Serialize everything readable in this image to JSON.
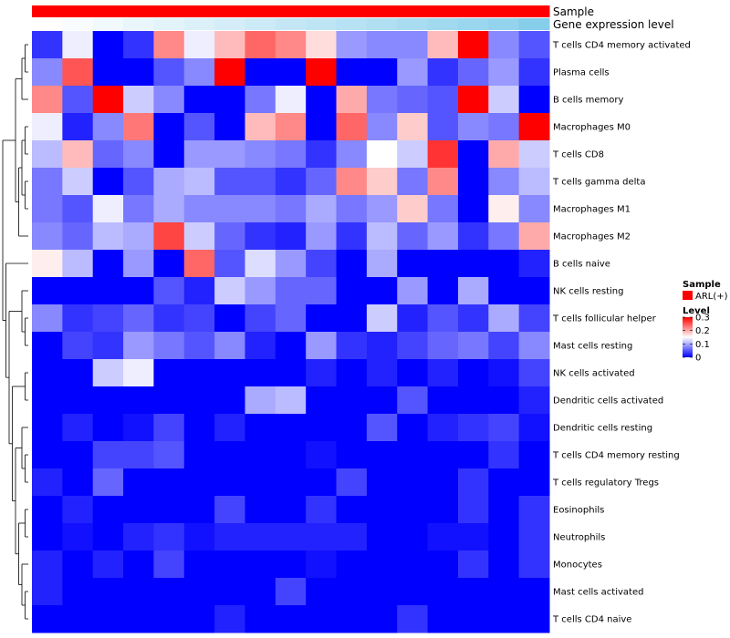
{
  "chart_data": {
    "type": "heatmap",
    "title": "",
    "color_scale": {
      "min": 0,
      "max": 0.3,
      "low": "#0000ff",
      "mid": "#ffffff",
      "high": "#ff0000"
    },
    "annotations": [
      {
        "label": "Sample",
        "color": "#ff0000"
      },
      {
        "label": "Gene expression level",
        "gradient": [
          "#ffffff",
          "#87ceeb"
        ]
      }
    ],
    "rows": [
      "T cells CD4 memory activated",
      "Plasma cells",
      "B cells memory",
      "Macrophages M0",
      "T cells CD8",
      "T cells gamma delta",
      "Macrophages M1",
      "Macrophages M2",
      "B cells naive",
      "NK cells resting",
      "T cells follicular helper",
      "Mast cells resting",
      "NK cells activated",
      "Dendritic cells activated",
      "Dendritic cells resting",
      "T cells CD4 memory resting",
      "T cells regulatory  Tregs",
      "Eosinophils",
      "Neutrophils",
      "Monocytes",
      "Mast cells activated",
      "T cells CD4 naive"
    ],
    "values": [
      [
        0.03,
        0.14,
        0.0,
        0.03,
        0.22,
        0.14,
        0.19,
        0.24,
        0.22,
        0.17,
        0.09,
        0.08,
        0.08,
        0.19,
        0.3,
        0.08,
        0.05
      ],
      [
        0.08,
        0.25,
        0.0,
        0.0,
        0.05,
        0.08,
        0.3,
        0.0,
        0.0,
        0.3,
        0.0,
        0.0,
        0.09,
        0.03,
        0.06,
        0.09,
        0.03
      ],
      [
        0.22,
        0.05,
        0.3,
        0.12,
        0.08,
        0.0,
        0.0,
        0.07,
        0.14,
        0.0,
        0.2,
        0.07,
        0.06,
        0.05,
        0.3,
        0.12,
        0.0
      ],
      [
        0.14,
        0.02,
        0.08,
        0.23,
        0.0,
        0.05,
        0.0,
        0.19,
        0.22,
        0.0,
        0.24,
        0.08,
        0.18,
        0.05,
        0.08,
        0.07,
        0.3
      ],
      [
        0.11,
        0.19,
        0.06,
        0.08,
        0.0,
        0.09,
        0.09,
        0.08,
        0.07,
        0.03,
        0.08,
        0.15,
        0.12,
        0.27,
        0.0,
        0.2,
        0.12
      ],
      [
        0.07,
        0.12,
        0.0,
        0.05,
        0.1,
        0.11,
        0.05,
        0.05,
        0.03,
        0.06,
        0.22,
        0.18,
        0.07,
        0.22,
        0.0,
        0.08,
        0.11
      ],
      [
        0.07,
        0.05,
        0.14,
        0.07,
        0.1,
        0.08,
        0.08,
        0.08,
        0.07,
        0.1,
        0.07,
        0.09,
        0.18,
        0.07,
        0.0,
        0.16,
        0.08
      ],
      [
        0.08,
        0.06,
        0.11,
        0.1,
        0.26,
        0.12,
        0.06,
        0.03,
        0.02,
        0.09,
        0.03,
        0.11,
        0.06,
        0.09,
        0.03,
        0.07,
        0.2
      ],
      [
        0.16,
        0.11,
        0.0,
        0.09,
        0.0,
        0.24,
        0.05,
        0.13,
        0.09,
        0.04,
        0.0,
        0.1,
        0.0,
        0.0,
        0.0,
        0.0,
        0.02
      ],
      [
        0.0,
        0.0,
        0.0,
        0.0,
        0.05,
        0.02,
        0.12,
        0.09,
        0.06,
        0.06,
        0.0,
        0.0,
        0.09,
        0.0,
        0.1,
        0.0,
        0.0
      ],
      [
        0.08,
        0.03,
        0.04,
        0.06,
        0.03,
        0.04,
        0.0,
        0.04,
        0.06,
        0.0,
        0.0,
        0.12,
        0.02,
        0.05,
        0.03,
        0.1,
        0.04
      ],
      [
        0.0,
        0.04,
        0.03,
        0.09,
        0.07,
        0.05,
        0.08,
        0.02,
        0.0,
        0.09,
        0.03,
        0.02,
        0.04,
        0.06,
        0.07,
        0.04,
        0.08
      ],
      [
        0.0,
        0.0,
        0.12,
        0.14,
        0.0,
        0.0,
        0.0,
        0.0,
        0.0,
        0.02,
        0.0,
        0.02,
        0.0,
        0.02,
        0.0,
        0.01,
        0.04
      ],
      [
        0.0,
        0.0,
        0.0,
        0.0,
        0.0,
        0.0,
        0.0,
        0.1,
        0.11,
        0.0,
        0.0,
        0.0,
        0.05,
        0.0,
        0.0,
        0.0,
        0.02
      ],
      [
        0.0,
        0.02,
        0.0,
        0.01,
        0.04,
        0.0,
        0.02,
        0.0,
        0.0,
        0.0,
        0.0,
        0.05,
        0.0,
        0.02,
        0.03,
        0.04,
        0.01
      ],
      [
        0.0,
        0.0,
        0.04,
        0.04,
        0.05,
        0.0,
        0.0,
        0.0,
        0.0,
        0.01,
        0.0,
        0.0,
        0.0,
        0.0,
        0.0,
        0.03,
        0.0
      ],
      [
        0.02,
        0.0,
        0.06,
        0.0,
        0.0,
        0.0,
        0.0,
        0.0,
        0.0,
        0.0,
        0.04,
        0.0,
        0.0,
        0.0,
        0.03,
        0.0,
        0.0
      ],
      [
        0.0,
        0.02,
        0.0,
        0.0,
        0.0,
        0.0,
        0.04,
        0.0,
        0.0,
        0.03,
        0.0,
        0.0,
        0.0,
        0.0,
        0.03,
        0.0,
        0.03
      ],
      [
        0.0,
        0.01,
        0.0,
        0.02,
        0.03,
        0.01,
        0.02,
        0.02,
        0.02,
        0.02,
        0.02,
        0.0,
        0.0,
        0.01,
        0.01,
        0.0,
        0.03
      ],
      [
        0.02,
        0.0,
        0.02,
        0.0,
        0.04,
        0.0,
        0.0,
        0.0,
        0.0,
        0.01,
        0.0,
        0.0,
        0.0,
        0.0,
        0.03,
        0.0,
        0.03
      ],
      [
        0.02,
        0.0,
        0.0,
        0.0,
        0.0,
        0.0,
        0.0,
        0.0,
        0.04,
        0.0,
        0.0,
        0.0,
        0.0,
        0.0,
        0.0,
        0.0,
        0.0
      ],
      [
        0.0,
        0.0,
        0.0,
        0.0,
        0.0,
        0.0,
        0.02,
        0.0,
        0.0,
        0.0,
        0.0,
        0.0,
        0.03,
        0.0,
        0.0,
        0.0,
        0.0
      ]
    ],
    "column_expression_level": [
      0.0,
      0.06,
      0.12,
      0.18,
      0.24,
      0.3,
      0.36,
      0.42,
      0.48,
      0.54,
      0.6,
      0.66,
      0.72,
      0.78,
      0.84,
      0.9,
      1.0
    ],
    "legend": {
      "sample_title": "Sample",
      "sample_items": [
        {
          "label": "ARL(+)",
          "color": "#ff0000"
        }
      ],
      "level_title": "Level",
      "level_ticks": [
        "0.3",
        "0.2",
        "0.1",
        "0"
      ],
      "level_tick_values": [
        0.3,
        0.2,
        0.1,
        0
      ]
    }
  }
}
